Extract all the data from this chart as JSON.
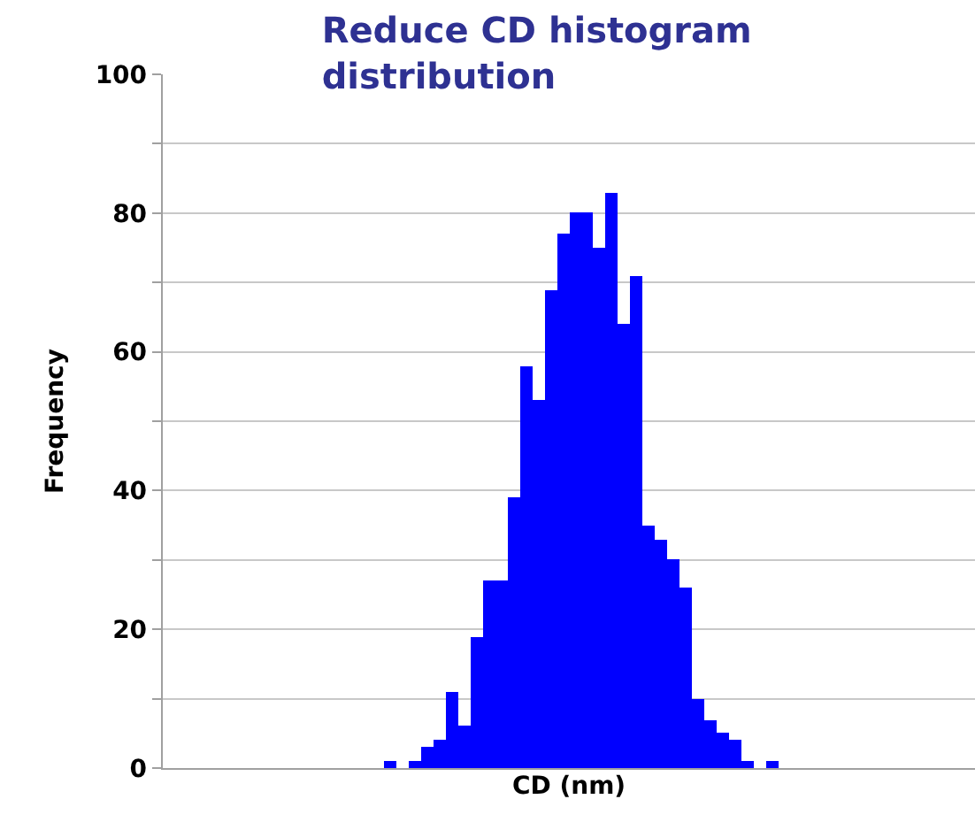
{
  "chart_data": {
    "type": "bar",
    "title": "Reduce CD histogram distribution",
    "xlabel": "CD (nm)",
    "ylabel": "Frequency",
    "categories": [
      null,
      null,
      null,
      null,
      null,
      null,
      null,
      null,
      null,
      null,
      null,
      null,
      null,
      null,
      null,
      null,
      null,
      null,
      null,
      null,
      null,
      null,
      null,
      null,
      null,
      null,
      null,
      null,
      null,
      null,
      null,
      null,
      null,
      null,
      null,
      null,
      null,
      null,
      null,
      null,
      null,
      null,
      null,
      null,
      null,
      null,
      null,
      null,
      null,
      null,
      null,
      null,
      null,
      null,
      null,
      null,
      null,
      null,
      null,
      null,
      null,
      null,
      null,
      null,
      null,
      null
    ],
    "values": [
      0,
      0,
      0,
      0,
      0,
      0,
      0,
      0,
      0,
      0,
      0,
      0,
      0,
      0,
      0,
      0,
      0,
      0,
      1,
      0,
      1,
      3,
      4,
      11,
      6,
      19,
      27,
      27,
      39,
      58,
      53,
      69,
      77,
      80,
      80,
      75,
      83,
      64,
      71,
      35,
      33,
      30,
      26,
      10,
      7,
      5,
      4,
      1,
      0,
      1,
      0,
      0,
      0,
      0,
      0,
      0,
      0,
      0,
      0,
      0,
      0,
      0,
      0,
      0,
      0,
      0
    ],
    "color": "#0000ff",
    "ylim": [
      0,
      100
    ],
    "yticks": [
      {
        "value": 0,
        "label": "0"
      },
      {
        "value": 10,
        "label": null
      },
      {
        "value": 20,
        "label": "20"
      },
      {
        "value": 30,
        "label": null
      },
      {
        "value": 40,
        "label": "40"
      },
      {
        "value": 50,
        "label": null
      },
      {
        "value": 60,
        "label": "60"
      },
      {
        "value": 70,
        "label": null
      },
      {
        "value": 80,
        "label": "80"
      },
      {
        "value": 90,
        "label": null
      },
      {
        "value": 100,
        "label": "100"
      }
    ],
    "grid": "y",
    "tick_labels": "y"
  }
}
